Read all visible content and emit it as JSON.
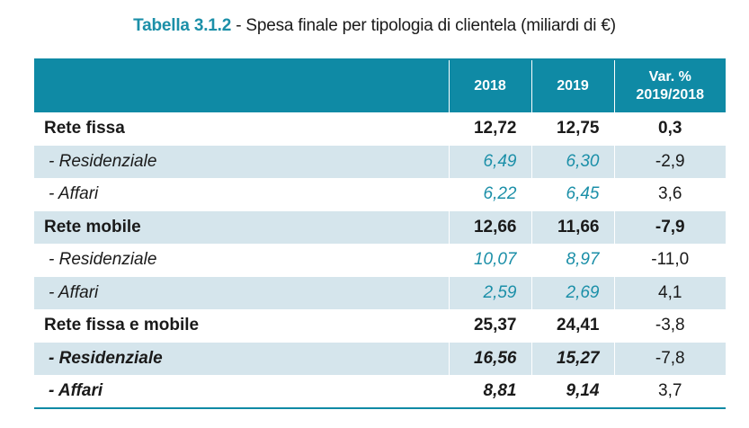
{
  "caption": {
    "tag": "Tabella 3.1.2",
    "separator": " - ",
    "text": "Spesa finale per tipologia di clientela (miliardi di €)"
  },
  "table": {
    "headers": [
      "",
      "2018",
      "2019",
      "Var. %",
      "2019/2018"
    ],
    "rows": [
      {
        "label": "Rete fissa",
        "v2018": "12,72",
        "v2019": "12,75",
        "var": "0,3"
      },
      {
        "label": "- Residenziale",
        "v2018": "6,49",
        "v2019": "6,30",
        "var": "-2,9"
      },
      {
        "label": "- Affari",
        "v2018": "6,22",
        "v2019": "6,45",
        "var": "3,6"
      },
      {
        "label": "Rete mobile",
        "v2018": "12,66",
        "v2019": "11,66",
        "var": "-7,9"
      },
      {
        "label": "- Residenziale",
        "v2018": "10,07",
        "v2019": "8,97",
        "var": "-11,0"
      },
      {
        "label": "- Affari",
        "v2018": "2,59",
        "v2019": "2,69",
        "var": "4,1"
      },
      {
        "label": "Rete fissa e mobile",
        "v2018": "25,37",
        "v2019": "24,41",
        "var": "-3,8"
      },
      {
        "label": "- Residenziale",
        "v2018": "16,56",
        "v2019": "15,27",
        "var": "-7,8"
      },
      {
        "label": "- Affari",
        "v2018": "8,81",
        "v2019": "9,14",
        "var": "3,7"
      }
    ]
  },
  "colors": {
    "accent": "#0f8aa5",
    "stripe": "#d5e5ec",
    "italic_value": "#1b8fa8"
  }
}
